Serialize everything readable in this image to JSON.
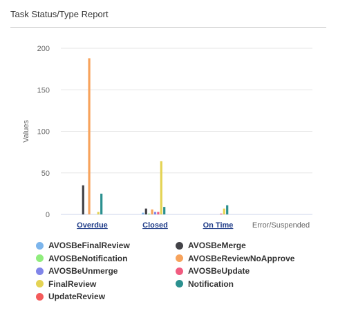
{
  "panel": {
    "title": "Task Status/Type Report"
  },
  "chart_data": {
    "type": "bar",
    "categories": [
      "Overdue",
      "Closed",
      "On Time",
      "Error/Suspended"
    ],
    "category_links": [
      true,
      true,
      true,
      false
    ],
    "ylabel": "Values",
    "xlabel": "",
    "ylim": [
      0,
      200
    ],
    "yticks": [
      0,
      50,
      100,
      150,
      200
    ],
    "grid": true,
    "legend_position": "bottom",
    "series": [
      {
        "name": "AVOSBeFinalReview",
        "color": "#7cb5ec",
        "values": [
          0,
          2,
          0,
          0
        ]
      },
      {
        "name": "AVOSBeMerge",
        "color": "#434348",
        "values": [
          35,
          7,
          0,
          0
        ]
      },
      {
        "name": "AVOSBeNotification",
        "color": "#90ed7d",
        "values": [
          0,
          1,
          0,
          0
        ]
      },
      {
        "name": "AVOSBeReviewNoApprove",
        "color": "#f7a35c",
        "values": [
          188,
          6,
          0,
          0
        ]
      },
      {
        "name": "AVOSBeUnmerge",
        "color": "#8085e9",
        "values": [
          0,
          3,
          0,
          0
        ]
      },
      {
        "name": "AVOSBeUpdate",
        "color": "#f15c80",
        "values": [
          0,
          3,
          1,
          0
        ]
      },
      {
        "name": "FinalReview",
        "color": "#e4d354",
        "values": [
          3,
          64,
          7,
          0
        ]
      },
      {
        "name": "Notification",
        "color": "#2b908f",
        "values": [
          25,
          9,
          11,
          0
        ]
      },
      {
        "name": "UpdateReview",
        "color": "#f45b5b",
        "values": [
          0,
          0,
          0,
          0
        ]
      }
    ]
  }
}
